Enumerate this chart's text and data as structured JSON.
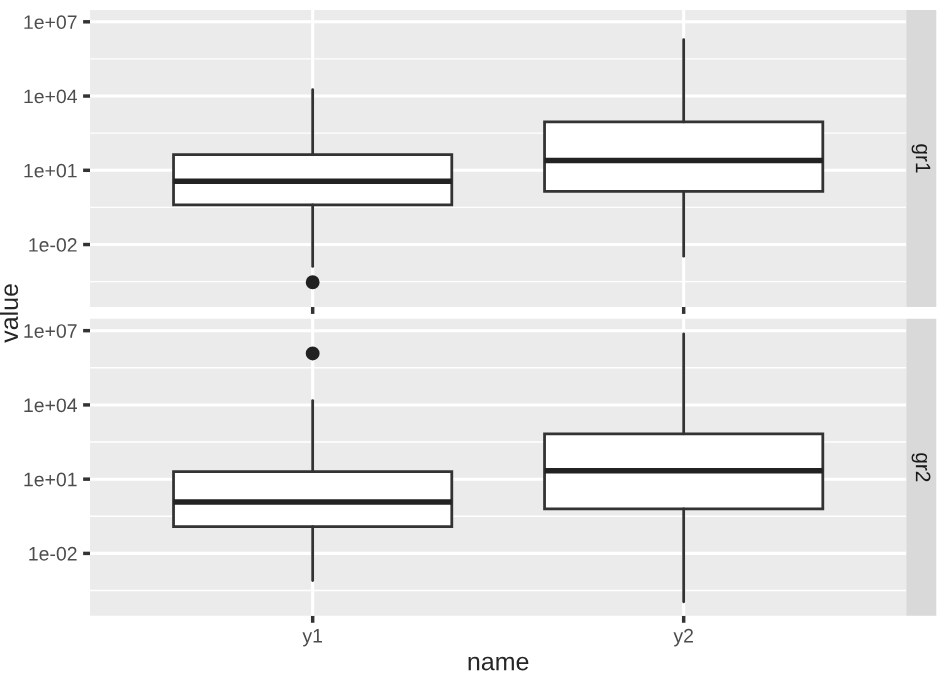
{
  "chart_data": [
    {
      "type": "box",
      "title": "gr1",
      "ylabel": "value",
      "categories": [
        null,
        null
      ],
      "log": "y",
      "ylim": [
        3e-05,
        30000000.0
      ],
      "yticks": [
        {
          "value": 0.01,
          "label": "1e-02"
        },
        {
          "value": 10,
          "label": "1e+01"
        },
        {
          "value": 10000,
          "label": "1e+04"
        },
        {
          "value": 10000000,
          "label": "1e+07"
        }
      ],
      "grid": true,
      "tick_labels": "y",
      "color": "#ffffff",
      "boxes": [
        {
          "low": 0.0013,
          "q1": 0.4,
          "median": 3.6,
          "q3": 43,
          "high": 18000,
          "outliers": [
            0.0003
          ]
        },
        {
          "low": 0.0034,
          "q1": 1.4,
          "median": 25,
          "q3": 900,
          "high": 1900000
        }
      ]
    },
    {
      "type": "box",
      "title": "gr2",
      "xlabel": "name",
      "categories": [
        "y1",
        "y2"
      ],
      "log": "y",
      "ylim": [
        3e-05,
        30000000.0
      ],
      "yticks": [
        {
          "value": 0.01,
          "label": "1e-02"
        },
        {
          "value": 10,
          "label": "1e+01"
        },
        {
          "value": 10000,
          "label": "1e+04"
        },
        {
          "value": 10000000,
          "label": "1e+07"
        }
      ],
      "grid": true,
      "color": "#ffffff",
      "boxes": [
        {
          "low": 0.0008,
          "q1": 0.12,
          "median": 1.2,
          "q3": 20,
          "high": 15000,
          "outliers": [
            1200000
          ]
        },
        {
          "low": 0.00011,
          "q1": 0.63,
          "median": 22,
          "q3": 680,
          "high": 7400000
        }
      ]
    }
  ]
}
